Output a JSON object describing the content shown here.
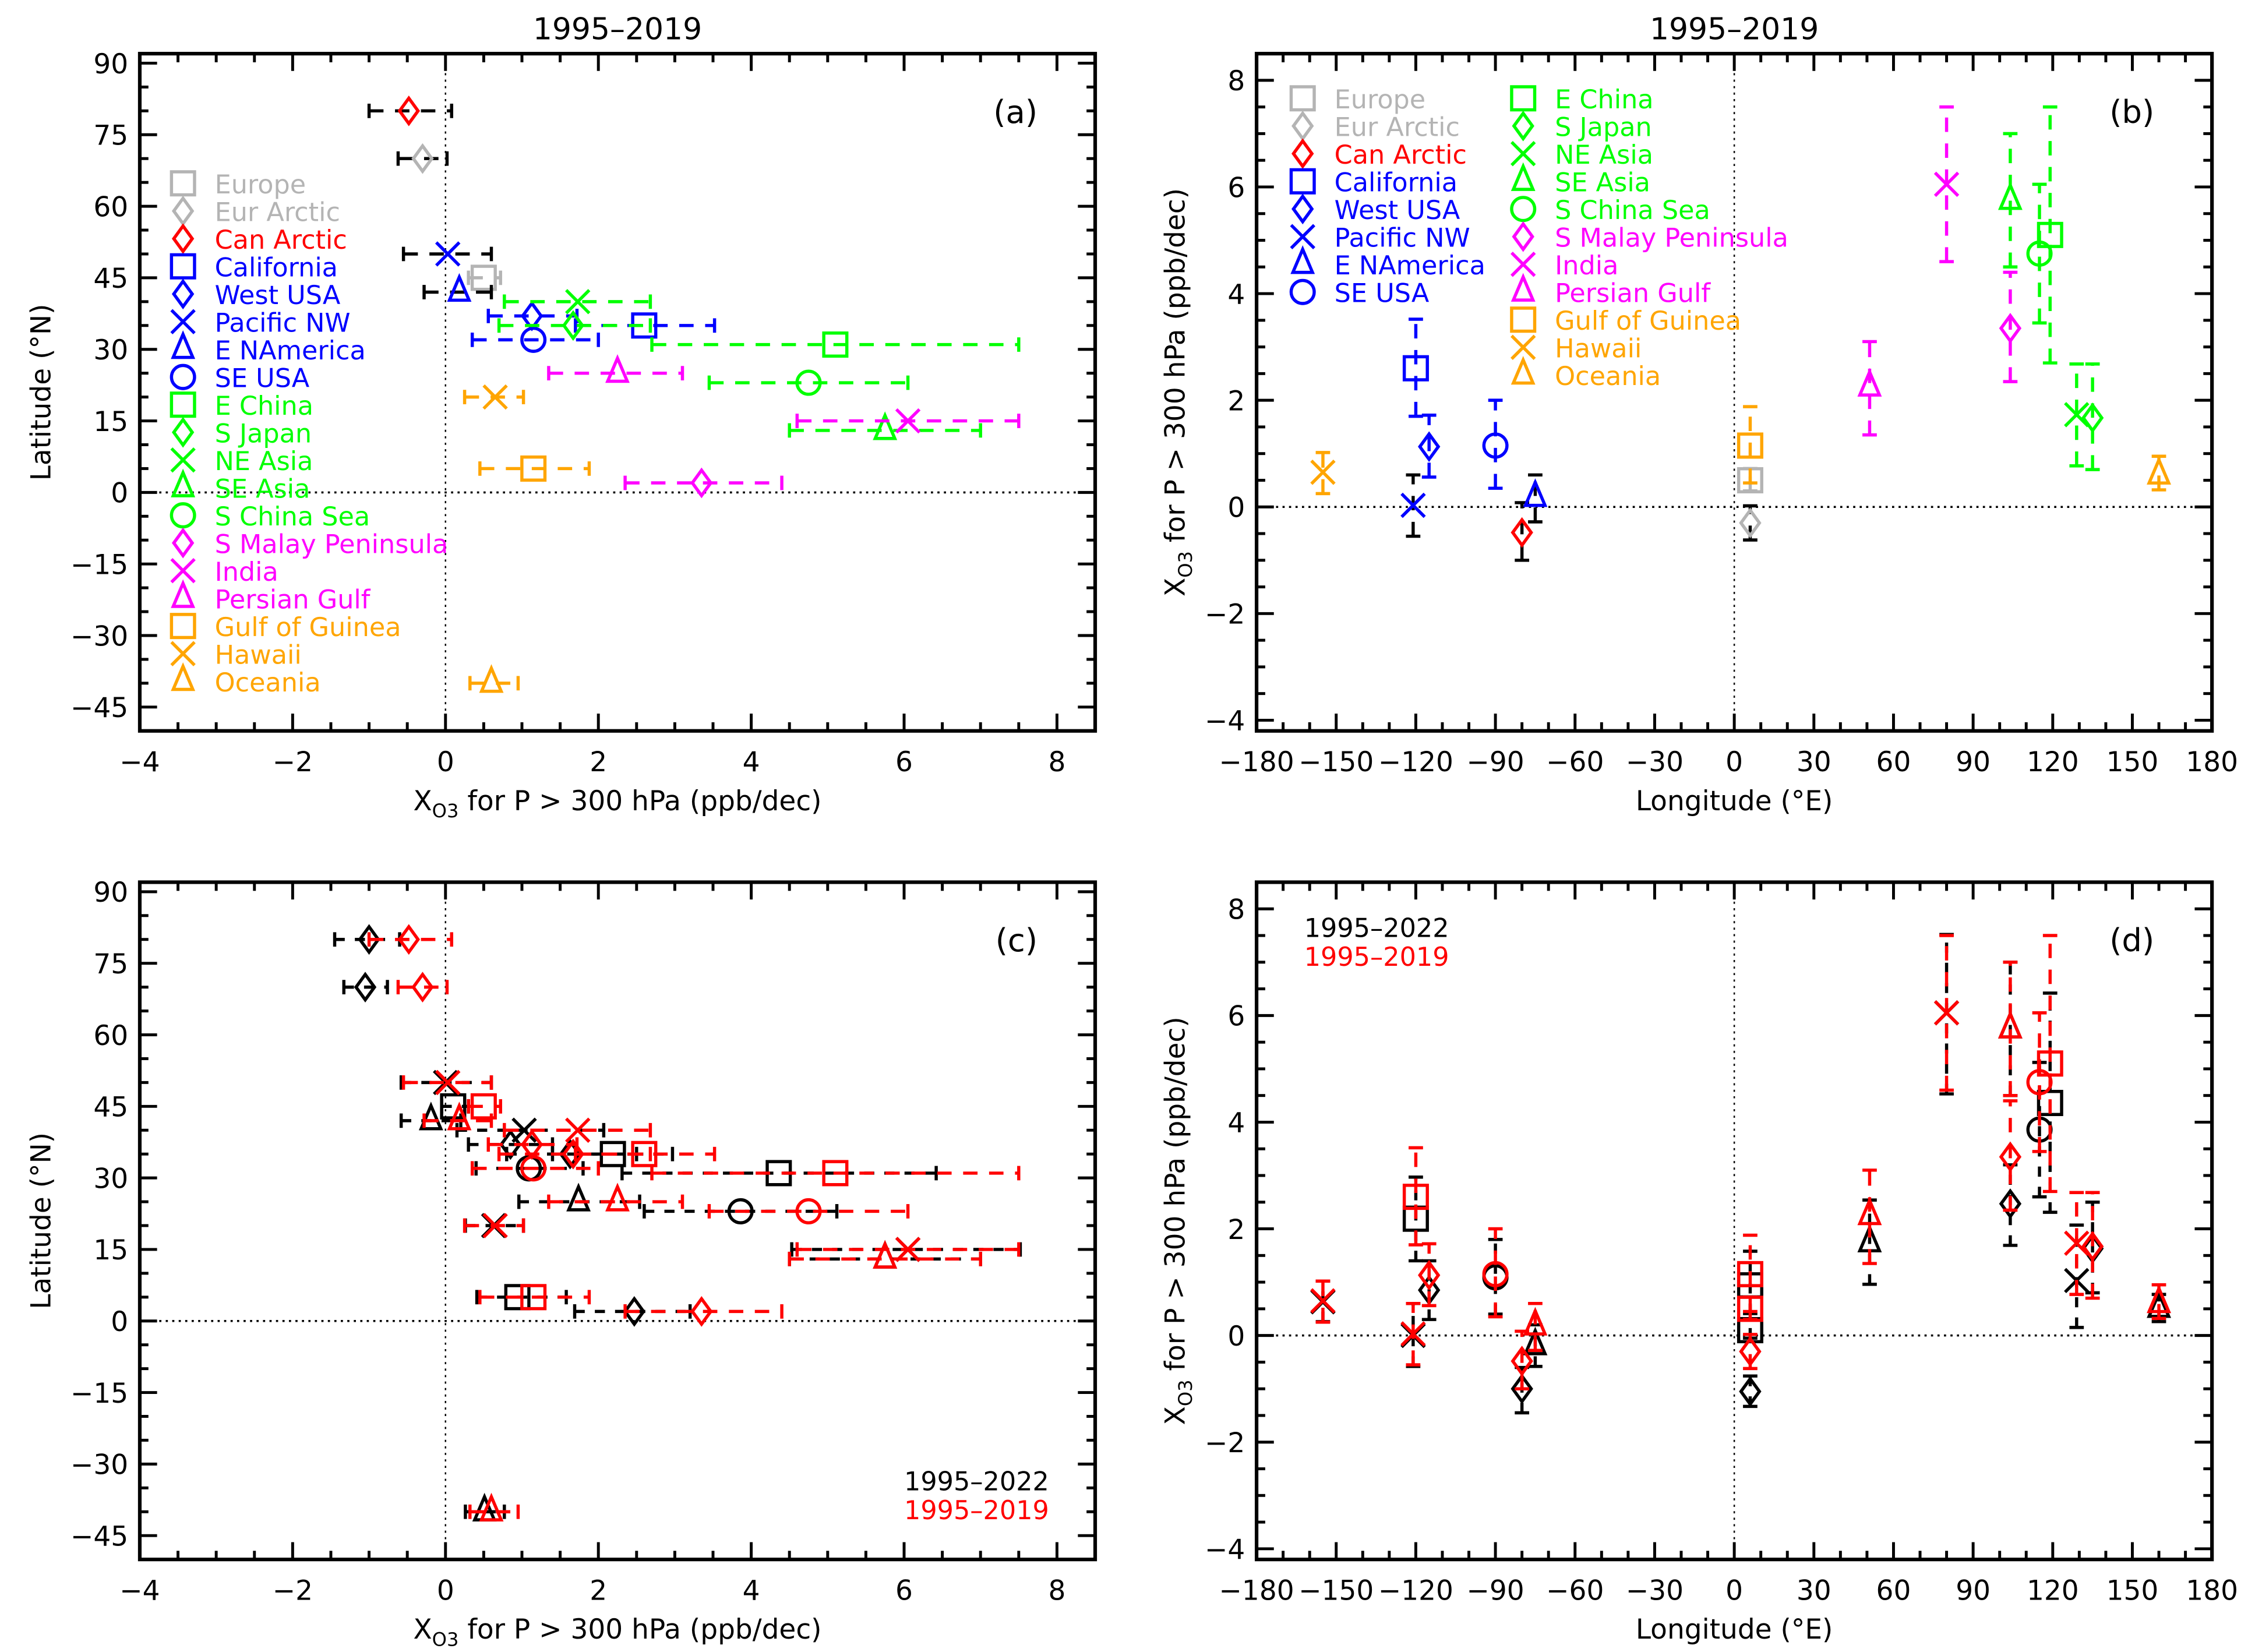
{
  "regions": [
    {
      "name": "Europe",
      "color": "#b4b4b4",
      "marker": "square",
      "lat": 45,
      "lon": 6,
      "t19": [
        0.5,
        0.3,
        0.72
      ],
      "t22": [
        0.1,
        -0.05,
        0.3
      ]
    },
    {
      "name": "Eur Arctic",
      "color": "#b4b4b4",
      "marker": "diamond",
      "lat": 70,
      "lon": 6,
      "t19": [
        -0.3,
        -0.62,
        0.02
      ],
      "t22": [
        -1.05,
        -1.33,
        -0.76
      ]
    },
    {
      "name": "Can Arctic",
      "color": "#ff0000",
      "marker": "diamond",
      "lat": 80,
      "lon": -80,
      "t19": [
        -0.48,
        -1.0,
        0.08
      ],
      "t22": [
        -1.0,
        -1.45,
        -0.6
      ]
    },
    {
      "name": "California",
      "color": "#0000ff",
      "marker": "square",
      "lat": 35,
      "lon": -120,
      "t19": [
        2.6,
        1.7,
        3.52
      ],
      "t22": [
        2.19,
        1.4,
        2.97
      ]
    },
    {
      "name": "West USA",
      "color": "#0000ff",
      "marker": "diamond",
      "lat": 37,
      "lon": -115,
      "t19": [
        1.13,
        0.56,
        1.72
      ],
      "t22": [
        0.85,
        0.3,
        1.4
      ]
    },
    {
      "name": "Pacific NW",
      "color": "#0000ff",
      "marker": "x",
      "lat": 50,
      "lon": -121,
      "t19": [
        0.03,
        -0.55,
        0.6
      ],
      "t22": [
        0.0,
        -0.58,
        0.6
      ]
    },
    {
      "name": "E NAmerica",
      "color": "#0000ff",
      "marker": "triangle",
      "lat": 42,
      "lon": -75,
      "t19": [
        0.18,
        -0.28,
        0.6
      ],
      "t22": [
        -0.19,
        -0.58,
        0.2
      ]
    },
    {
      "name": "SE USA",
      "color": "#0000ff",
      "marker": "circle",
      "lat": 32,
      "lon": -90,
      "t19": [
        1.15,
        0.35,
        2.0
      ],
      "t22": [
        1.09,
        0.4,
        1.8
      ]
    },
    {
      "name": "E China",
      "color": "#00ff00",
      "marker": "square",
      "lat": 31,
      "lon": 119,
      "t19": [
        5.1,
        2.7,
        7.5
      ],
      "t22": [
        4.36,
        2.31,
        6.42
      ]
    },
    {
      "name": "S Japan",
      "color": "#00ff00",
      "marker": "diamond",
      "lat": 35,
      "lon": 135,
      "t19": [
        1.67,
        0.7,
        2.68
      ],
      "t22": [
        1.63,
        0.8,
        2.5
      ]
    },
    {
      "name": "NE Asia",
      "color": "#00ff00",
      "marker": "x",
      "lat": 40,
      "lon": 129,
      "t19": [
        1.73,
        0.77,
        2.68
      ],
      "t22": [
        1.03,
        0.15,
        2.07
      ]
    },
    {
      "name": "SE Asia",
      "color": "#00ff00",
      "marker": "triangle",
      "lat": 13,
      "lon": 104,
      "t19": [
        5.75,
        4.5,
        7.0
      ],
      "t22": [
        5.75,
        4.5,
        7.0
      ]
    },
    {
      "name": "S China Sea",
      "color": "#00ff00",
      "marker": "circle",
      "lat": 23,
      "lon": 115,
      "t19": [
        4.75,
        3.45,
        6.05
      ],
      "t22": [
        3.86,
        2.6,
        5.12
      ]
    },
    {
      "name": "S Malay Peninsula",
      "color": "#ff00ff",
      "marker": "diamond",
      "lat": 2,
      "lon": 104,
      "t19": [
        3.35,
        2.35,
        4.4
      ],
      "t22": [
        2.47,
        1.69,
        3.2
      ]
    },
    {
      "name": "India",
      "color": "#ff00ff",
      "marker": "x",
      "lat": 15,
      "lon": 80,
      "t19": [
        6.05,
        4.6,
        7.5
      ],
      "t22": [
        6.05,
        4.53,
        7.52
      ]
    },
    {
      "name": "Persian Gulf",
      "color": "#ff00ff",
      "marker": "triangle",
      "lat": 25,
      "lon": 51,
      "t19": [
        2.25,
        1.35,
        3.1
      ],
      "t22": [
        1.74,
        0.96,
        2.54
      ]
    },
    {
      "name": "Gulf of Guinea",
      "color": "#ffa500",
      "marker": "square",
      "lat": 5,
      "lon": 6,
      "t19": [
        1.15,
        0.45,
        1.88
      ],
      "t22": [
        0.94,
        0.41,
        1.58
      ]
    },
    {
      "name": "Hawaii",
      "color": "#ffa500",
      "marker": "x",
      "lat": 20,
      "lon": -155,
      "t19": [
        0.65,
        0.25,
        1.02
      ],
      "t22": [
        0.63,
        0.26,
        1.02
      ]
    },
    {
      "name": "Oceania",
      "color": "#ffa500",
      "marker": "triangle",
      "lat": -40,
      "lon": 160,
      "t19": [
        0.6,
        0.32,
        0.95
      ],
      "t22": [
        0.51,
        0.26,
        0.77
      ]
    }
  ],
  "chart_data": [
    {
      "panel": "(a)",
      "type": "scatter",
      "title": "1995-2019",
      "xlabel_main": "X",
      "xlabel_sub": "O3",
      "xlabel_rest": " for P > 300 hPa  (ppb/dec)",
      "ylabel": "Latitude (°N)",
      "xlim": [
        -4,
        8.5
      ],
      "ylim": [
        -50,
        92
      ],
      "xticks": [
        -4,
        -2,
        0,
        2,
        4,
        6,
        8
      ],
      "yticks": [
        -45,
        -30,
        -15,
        0,
        15,
        30,
        45,
        60,
        75,
        90
      ],
      "series": [
        "t19"
      ]
    },
    {
      "panel": "(b)",
      "type": "scatter",
      "title": "1995-2019",
      "xlabel": "Longitude (°E)",
      "ylabel_main": "X",
      "ylabel_sub": "O3",
      "ylabel_rest": " for P > 300 hPa  (ppb/dec)",
      "xlim": [
        -180,
        180
      ],
      "ylim": [
        -4.2,
        8.5
      ],
      "xticks": [
        -180,
        -150,
        -120,
        -90,
        -60,
        -30,
        0,
        30,
        60,
        90,
        120,
        150,
        180
      ],
      "yticks": [
        -4,
        -2,
        0,
        2,
        4,
        6,
        8
      ],
      "series": [
        "t19"
      ]
    },
    {
      "panel": "(c)",
      "type": "scatter",
      "xlabel_main": "X",
      "xlabel_sub": "O3",
      "xlabel_rest": " for P > 300 hPa  (ppb/dec)",
      "ylabel": "Latitude (°N)",
      "xlim": [
        -4,
        8.5
      ],
      "ylim": [
        -50,
        92
      ],
      "xticks": [
        -4,
        -2,
        0,
        2,
        4,
        6,
        8
      ],
      "yticks": [
        -45,
        -30,
        -15,
        0,
        15,
        30,
        45,
        60,
        75,
        90
      ],
      "series": [
        "t22",
        "t19"
      ],
      "legend": [
        "1995-2022",
        "1995-2019"
      ],
      "legend_position": "bottom-right"
    },
    {
      "panel": "(d)",
      "type": "scatter",
      "xlabel": "Longitude (°E)",
      "ylabel_main": "X",
      "ylabel_sub": "O3",
      "ylabel_rest": " for P > 300 hPa  (ppb/dec)",
      "xlim": [
        -180,
        180
      ],
      "ylim": [
        -4.2,
        8.5
      ],
      "xticks": [
        -180,
        -150,
        -120,
        -90,
        -60,
        -30,
        0,
        30,
        60,
        90,
        120,
        150,
        180
      ],
      "yticks": [
        -4,
        -2,
        0,
        2,
        4,
        6,
        8
      ],
      "series": [
        "t22",
        "t19"
      ],
      "legend": [
        "1995-2022",
        "1995-2019"
      ],
      "legend_position": "top-left"
    }
  ],
  "series_colors": {
    "t22": "#000000",
    "t19": "#ff0000"
  }
}
